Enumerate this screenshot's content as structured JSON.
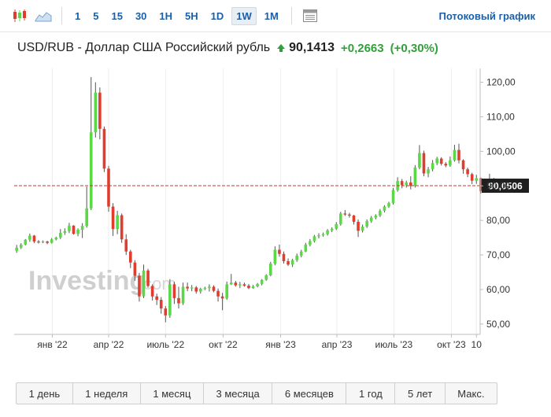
{
  "toolbar": {
    "timeframes": [
      "1",
      "5",
      "15",
      "30",
      "1H",
      "5H",
      "1D",
      "1W",
      "1M"
    ],
    "active_timeframe": "1W",
    "stream_link": "Потоковый график"
  },
  "header": {
    "title": "USD/RUB - Доллар США Российский рубль",
    "last_price": "90,1413",
    "change": "+0,2663",
    "change_pct": "(+0,30%)",
    "direction": "up"
  },
  "watermark": {
    "brand": "Investing",
    "suffix": ".com"
  },
  "colors": {
    "up": "#5bd845",
    "down": "#e03d2e",
    "up_text": "#32a03a",
    "link": "#1b5fa8",
    "price_line": "#c0392b"
  },
  "chart_data": {
    "type": "candlestick",
    "symbol": "USD/RUB",
    "y_ticks": [
      "120,00",
      "110,00",
      "100,00",
      "90,00",
      "80,00",
      "70,00",
      "60,00",
      "50,00"
    ],
    "y_tick_values": [
      120,
      110,
      100,
      90,
      80,
      70,
      60,
      50
    ],
    "ylim": [
      47,
      124
    ],
    "x_labels": [
      "янв '22",
      "апр '22",
      "июль '22",
      "окт '22",
      "янв '23",
      "апр '23",
      "июль '23",
      "окт '23",
      "10"
    ],
    "x_label_dates": [
      "2022-01-01",
      "2022-04-01",
      "2022-07-01",
      "2022-10-01",
      "2023-01-01",
      "2023-04-01",
      "2023-07-01",
      "2023-10-01",
      "2023-11-10"
    ],
    "xlim": [
      "2021-11-01",
      "2023-11-16"
    ],
    "current_price_label": "90,0506",
    "current_price": 90.05,
    "grid": "vertical",
    "candles": [
      {
        "date": "2021-11-05",
        "o": 71.2,
        "h": 72.9,
        "l": 70.6,
        "c": 72.1
      },
      {
        "date": "2021-11-12",
        "o": 72.1,
        "h": 73.4,
        "l": 71.7,
        "c": 73.0
      },
      {
        "date": "2021-11-19",
        "o": 73.0,
        "h": 74.6,
        "l": 72.8,
        "c": 74.4
      },
      {
        "date": "2021-11-26",
        "o": 74.4,
        "h": 76.2,
        "l": 73.8,
        "c": 75.6
      },
      {
        "date": "2021-12-03",
        "o": 75.6,
        "h": 75.8,
        "l": 73.4,
        "c": 73.9
      },
      {
        "date": "2021-12-10",
        "o": 73.9,
        "h": 74.3,
        "l": 73.3,
        "c": 73.7
      },
      {
        "date": "2021-12-17",
        "o": 73.7,
        "h": 74.2,
        "l": 73.4,
        "c": 73.9
      },
      {
        "date": "2021-12-24",
        "o": 73.9,
        "h": 74.1,
        "l": 73.1,
        "c": 73.5
      },
      {
        "date": "2021-12-31",
        "o": 73.5,
        "h": 74.9,
        "l": 73.3,
        "c": 74.5
      },
      {
        "date": "2022-01-07",
        "o": 74.5,
        "h": 75.3,
        "l": 74.2,
        "c": 75.0
      },
      {
        "date": "2022-01-14",
        "o": 75.0,
        "h": 77.5,
        "l": 74.6,
        "c": 76.4
      },
      {
        "date": "2022-01-21",
        "o": 76.4,
        "h": 77.7,
        "l": 75.8,
        "c": 76.9
      },
      {
        "date": "2022-01-28",
        "o": 76.9,
        "h": 79.3,
        "l": 76.3,
        "c": 78.5
      },
      {
        "date": "2022-02-04",
        "o": 78.5,
        "h": 78.6,
        "l": 75.9,
        "c": 76.1
      },
      {
        "date": "2022-02-11",
        "o": 76.1,
        "h": 77.7,
        "l": 75.4,
        "c": 77.3
      },
      {
        "date": "2022-02-18",
        "o": 77.3,
        "h": 79.2,
        "l": 74.9,
        "c": 78.4
      },
      {
        "date": "2022-02-25",
        "o": 78.4,
        "h": 89.8,
        "l": 77.9,
        "c": 83.5
      },
      {
        "date": "2022-03-04",
        "o": 83.5,
        "h": 121.5,
        "l": 83.0,
        "c": 105.5
      },
      {
        "date": "2022-03-11",
        "o": 105.5,
        "h": 120.0,
        "l": 104.0,
        "c": 117.0
      },
      {
        "date": "2022-03-18",
        "o": 117.0,
        "h": 118.5,
        "l": 103.5,
        "c": 106.5
      },
      {
        "date": "2022-03-25",
        "o": 106.5,
        "h": 107.2,
        "l": 94.0,
        "c": 95.0
      },
      {
        "date": "2022-04-01",
        "o": 95.0,
        "h": 95.8,
        "l": 82.5,
        "c": 84.0
      },
      {
        "date": "2022-04-08",
        "o": 84.0,
        "h": 85.0,
        "l": 75.5,
        "c": 77.5
      },
      {
        "date": "2022-04-15",
        "o": 77.5,
        "h": 82.8,
        "l": 76.0,
        "c": 81.5
      },
      {
        "date": "2022-04-22",
        "o": 81.5,
        "h": 82.0,
        "l": 73.5,
        "c": 74.5
      },
      {
        "date": "2022-04-29",
        "o": 74.5,
        "h": 76.0,
        "l": 70.0,
        "c": 71.0
      },
      {
        "date": "2022-05-06",
        "o": 71.0,
        "h": 71.5,
        "l": 66.2,
        "c": 67.8
      },
      {
        "date": "2022-05-13",
        "o": 67.8,
        "h": 68.5,
        "l": 62.5,
        "c": 64.0
      },
      {
        "date": "2022-05-20",
        "o": 64.0,
        "h": 64.8,
        "l": 56.5,
        "c": 58.0
      },
      {
        "date": "2022-05-27",
        "o": 58.0,
        "h": 67.2,
        "l": 57.5,
        "c": 65.5
      },
      {
        "date": "2022-06-03",
        "o": 65.5,
        "h": 66.0,
        "l": 60.5,
        "c": 61.0
      },
      {
        "date": "2022-06-10",
        "o": 61.0,
        "h": 61.5,
        "l": 56.8,
        "c": 58.0
      },
      {
        "date": "2022-06-17",
        "o": 58.0,
        "h": 58.8,
        "l": 55.5,
        "c": 57.0
      },
      {
        "date": "2022-06-24",
        "o": 57.0,
        "h": 57.8,
        "l": 53.0,
        "c": 54.5
      },
      {
        "date": "2022-07-01",
        "o": 54.5,
        "h": 55.2,
        "l": 50.5,
        "c": 52.5
      },
      {
        "date": "2022-07-08",
        "o": 52.5,
        "h": 63.0,
        "l": 51.8,
        "c": 61.5
      },
      {
        "date": "2022-07-15",
        "o": 61.5,
        "h": 62.2,
        "l": 55.8,
        "c": 57.5
      },
      {
        "date": "2022-07-22",
        "o": 57.5,
        "h": 60.8,
        "l": 54.5,
        "c": 56.0
      },
      {
        "date": "2022-07-29",
        "o": 56.0,
        "h": 62.0,
        "l": 55.5,
        "c": 60.8
      },
      {
        "date": "2022-08-05",
        "o": 60.8,
        "h": 62.0,
        "l": 59.5,
        "c": 60.3
      },
      {
        "date": "2022-08-12",
        "o": 60.3,
        "h": 61.3,
        "l": 59.5,
        "c": 60.6
      },
      {
        "date": "2022-08-19",
        "o": 60.6,
        "h": 61.0,
        "l": 58.8,
        "c": 59.4
      },
      {
        "date": "2022-08-26",
        "o": 59.4,
        "h": 60.5,
        "l": 58.8,
        "c": 60.2
      },
      {
        "date": "2022-09-02",
        "o": 60.2,
        "h": 60.8,
        "l": 59.8,
        "c": 60.4
      },
      {
        "date": "2022-09-09",
        "o": 60.4,
        "h": 61.5,
        "l": 59.4,
        "c": 60.8
      },
      {
        "date": "2022-09-16",
        "o": 60.8,
        "h": 61.2,
        "l": 59.2,
        "c": 59.6
      },
      {
        "date": "2022-09-23",
        "o": 59.6,
        "h": 60.3,
        "l": 56.5,
        "c": 58.0
      },
      {
        "date": "2022-09-30",
        "o": 58.0,
        "h": 59.0,
        "l": 54.0,
        "c": 57.4
      },
      {
        "date": "2022-10-07",
        "o": 57.4,
        "h": 62.3,
        "l": 57.0,
        "c": 61.5
      },
      {
        "date": "2022-10-14",
        "o": 61.5,
        "h": 64.5,
        "l": 61.3,
        "c": 62.0
      },
      {
        "date": "2022-10-21",
        "o": 62.0,
        "h": 62.5,
        "l": 60.8,
        "c": 61.2
      },
      {
        "date": "2022-10-28",
        "o": 61.2,
        "h": 62.2,
        "l": 60.4,
        "c": 61.5
      },
      {
        "date": "2022-11-04",
        "o": 61.5,
        "h": 62.0,
        "l": 60.8,
        "c": 61.1
      },
      {
        "date": "2022-11-11",
        "o": 61.1,
        "h": 61.6,
        "l": 60.1,
        "c": 60.4
      },
      {
        "date": "2022-11-18",
        "o": 60.4,
        "h": 61.3,
        "l": 60.2,
        "c": 60.9
      },
      {
        "date": "2022-11-25",
        "o": 60.9,
        "h": 61.9,
        "l": 60.6,
        "c": 61.6
      },
      {
        "date": "2022-12-02",
        "o": 61.6,
        "h": 63.0,
        "l": 61.2,
        "c": 62.8
      },
      {
        "date": "2022-12-09",
        "o": 62.8,
        "h": 64.4,
        "l": 62.5,
        "c": 64.1
      },
      {
        "date": "2022-12-16",
        "o": 64.1,
        "h": 68.0,
        "l": 63.8,
        "c": 67.5
      },
      {
        "date": "2022-12-23",
        "o": 67.5,
        "h": 72.5,
        "l": 67.0,
        "c": 71.5
      },
      {
        "date": "2022-12-30",
        "o": 71.5,
        "h": 73.0,
        "l": 69.5,
        "c": 70.3
      },
      {
        "date": "2023-01-06",
        "o": 70.3,
        "h": 71.0,
        "l": 67.5,
        "c": 68.2
      },
      {
        "date": "2023-01-13",
        "o": 68.2,
        "h": 69.0,
        "l": 66.8,
        "c": 67.2
      },
      {
        "date": "2023-01-20",
        "o": 67.2,
        "h": 68.9,
        "l": 66.5,
        "c": 68.5
      },
      {
        "date": "2023-01-27",
        "o": 68.5,
        "h": 70.4,
        "l": 68.0,
        "c": 69.8
      },
      {
        "date": "2023-02-03",
        "o": 69.8,
        "h": 71.5,
        "l": 69.3,
        "c": 71.0
      },
      {
        "date": "2023-02-10",
        "o": 71.0,
        "h": 73.5,
        "l": 70.8,
        "c": 73.0
      },
      {
        "date": "2023-02-17",
        "o": 73.0,
        "h": 74.6,
        "l": 72.5,
        "c": 74.0
      },
      {
        "date": "2023-02-24",
        "o": 74.0,
        "h": 75.8,
        "l": 73.6,
        "c": 75.4
      },
      {
        "date": "2023-03-03",
        "o": 75.4,
        "h": 76.3,
        "l": 74.8,
        "c": 75.7
      },
      {
        "date": "2023-03-10",
        "o": 75.7,
        "h": 76.5,
        "l": 75.3,
        "c": 76.0
      },
      {
        "date": "2023-03-17",
        "o": 76.0,
        "h": 77.5,
        "l": 75.6,
        "c": 77.1
      },
      {
        "date": "2023-03-24",
        "o": 77.1,
        "h": 78.0,
        "l": 76.6,
        "c": 77.6
      },
      {
        "date": "2023-03-31",
        "o": 77.6,
        "h": 79.5,
        "l": 77.2,
        "c": 78.9
      },
      {
        "date": "2023-04-07",
        "o": 78.9,
        "h": 82.5,
        "l": 78.5,
        "c": 82.0
      },
      {
        "date": "2023-04-14",
        "o": 82.0,
        "h": 83.0,
        "l": 81.3,
        "c": 81.7
      },
      {
        "date": "2023-04-21",
        "o": 81.7,
        "h": 82.2,
        "l": 80.8,
        "c": 81.4
      },
      {
        "date": "2023-04-28",
        "o": 81.4,
        "h": 81.6,
        "l": 78.8,
        "c": 79.6
      },
      {
        "date": "2023-05-05",
        "o": 79.6,
        "h": 80.3,
        "l": 75.2,
        "c": 77.0
      },
      {
        "date": "2023-05-12",
        "o": 77.0,
        "h": 78.8,
        "l": 76.5,
        "c": 78.2
      },
      {
        "date": "2023-05-19",
        "o": 78.2,
        "h": 80.3,
        "l": 77.8,
        "c": 79.8
      },
      {
        "date": "2023-05-26",
        "o": 79.8,
        "h": 81.3,
        "l": 79.3,
        "c": 80.8
      },
      {
        "date": "2023-06-02",
        "o": 80.8,
        "h": 81.8,
        "l": 80.3,
        "c": 81.4
      },
      {
        "date": "2023-06-09",
        "o": 81.4,
        "h": 83.3,
        "l": 81.0,
        "c": 82.8
      },
      {
        "date": "2023-06-16",
        "o": 82.8,
        "h": 84.4,
        "l": 82.3,
        "c": 84.0
      },
      {
        "date": "2023-06-23",
        "o": 84.0,
        "h": 85.4,
        "l": 83.6,
        "c": 85.0
      },
      {
        "date": "2023-06-30",
        "o": 85.0,
        "h": 89.4,
        "l": 84.6,
        "c": 88.8
      },
      {
        "date": "2023-07-07",
        "o": 88.8,
        "h": 92.5,
        "l": 88.3,
        "c": 91.4
      },
      {
        "date": "2023-07-14",
        "o": 91.4,
        "h": 92.0,
        "l": 89.3,
        "c": 90.2
      },
      {
        "date": "2023-07-21",
        "o": 90.2,
        "h": 91.5,
        "l": 89.5,
        "c": 91.0
      },
      {
        "date": "2023-07-28",
        "o": 91.0,
        "h": 92.8,
        "l": 89.0,
        "c": 90.0
      },
      {
        "date": "2023-08-04",
        "o": 90.0,
        "h": 96.0,
        "l": 89.5,
        "c": 95.3
      },
      {
        "date": "2023-08-11",
        "o": 95.3,
        "h": 101.8,
        "l": 94.8,
        "c": 99.5
      },
      {
        "date": "2023-08-18",
        "o": 99.5,
        "h": 100.2,
        "l": 92.8,
        "c": 93.6
      },
      {
        "date": "2023-08-25",
        "o": 93.6,
        "h": 95.5,
        "l": 92.5,
        "c": 94.8
      },
      {
        "date": "2023-09-01",
        "o": 94.8,
        "h": 97.5,
        "l": 94.2,
        "c": 96.6
      },
      {
        "date": "2023-09-08",
        "o": 96.6,
        "h": 98.4,
        "l": 96.0,
        "c": 97.9
      },
      {
        "date": "2023-09-15",
        "o": 97.9,
        "h": 98.3,
        "l": 95.9,
        "c": 96.4
      },
      {
        "date": "2023-09-22",
        "o": 96.4,
        "h": 96.9,
        "l": 95.4,
        "c": 95.9
      },
      {
        "date": "2023-09-29",
        "o": 95.9,
        "h": 98.5,
        "l": 95.5,
        "c": 97.4
      },
      {
        "date": "2023-10-06",
        "o": 97.4,
        "h": 101.9,
        "l": 97.0,
        "c": 100.4
      },
      {
        "date": "2023-10-13",
        "o": 100.4,
        "h": 102.2,
        "l": 96.5,
        "c": 97.4
      },
      {
        "date": "2023-10-20",
        "o": 97.4,
        "h": 97.7,
        "l": 93.5,
        "c": 94.8
      },
      {
        "date": "2023-10-27",
        "o": 94.8,
        "h": 95.3,
        "l": 92.5,
        "c": 93.4
      },
      {
        "date": "2023-11-03",
        "o": 93.4,
        "h": 93.8,
        "l": 90.5,
        "c": 91.5
      },
      {
        "date": "2023-11-10",
        "o": 91.5,
        "h": 93.2,
        "l": 90.6,
        "c": 92.2
      },
      {
        "date": "2023-11-17",
        "o": 92.2,
        "h": 92.4,
        "l": 87.8,
        "c": 88.5
      },
      {
        "date": "2023-11-24",
        "o": 88.5,
        "h": 90.5,
        "l": 88.0,
        "c": 89.8
      },
      {
        "date": "2023-12-01",
        "o": 89.8,
        "h": 93.5,
        "l": 89.3,
        "c": 91.8
      },
      {
        "date": "2023-12-08",
        "o": 91.8,
        "h": 92.3,
        "l": 89.6,
        "c": 90.05
      }
    ]
  },
  "periods": [
    "1 день",
    "1 неделя",
    "1 месяц",
    "3 месяца",
    "6 месяцев",
    "1 год",
    "5 лет",
    "Макс."
  ]
}
